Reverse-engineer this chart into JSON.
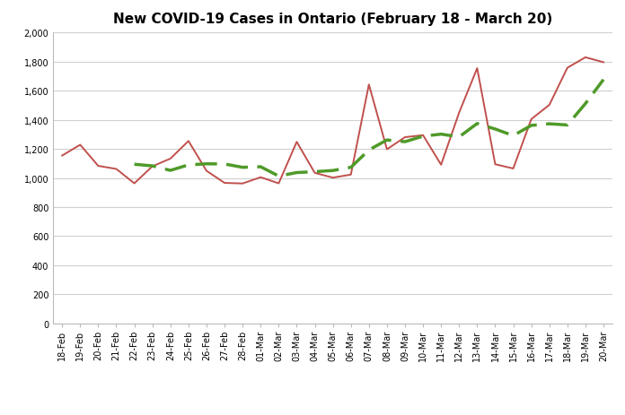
{
  "title": "New COVID-19 Cases in Ontario (February 18 - March 20)",
  "dates": [
    "18-Feb",
    "19-Feb",
    "20-Feb",
    "21-Feb",
    "22-Feb",
    "23-Feb",
    "24-Feb",
    "25-Feb",
    "26-Feb",
    "27-Feb",
    "28-Feb",
    "01-Mar",
    "02-Mar",
    "03-Mar",
    "04-Mar",
    "05-Mar",
    "06-Mar",
    "07-Mar",
    "08-Mar",
    "09-Mar",
    "10-Mar",
    "11-Mar",
    "12-Mar",
    "13-Mar",
    "14-Mar",
    "15-Mar",
    "16-Mar",
    "17-Mar",
    "18-Mar",
    "19-Mar",
    "20-Mar"
  ],
  "daily_cases": [
    1154,
    1228,
    1083,
    1062,
    963,
    1080,
    1133,
    1254,
    1049,
    966,
    962,
    1005,
    963,
    1248,
    1035,
    1002,
    1023,
    1642,
    1197,
    1280,
    1294,
    1091,
    1449,
    1754,
    1094,
    1065,
    1404,
    1502,
    1757,
    1829,
    1795
  ],
  "moving_avg": [
    null,
    null,
    null,
    null,
    1094,
    1083,
    1052,
    1090,
    1097,
    1096,
    1073,
    1077,
    1013,
    1037,
    1043,
    1051,
    1073,
    1192,
    1261,
    1249,
    1287,
    1301,
    1282,
    1374,
    1336,
    1291,
    1361,
    1372,
    1364,
    1511,
    1676
  ],
  "line_color": "#c0504d",
  "ma_color": "#4f9a29",
  "bg_color": "#ffffff",
  "plot_bg_color": "#ffffff",
  "grid_color": "#d0d0d0",
  "ylim": [
    0,
    2000
  ],
  "yticks": [
    0,
    200,
    400,
    600,
    800,
    1000,
    1200,
    1400,
    1600,
    1800,
    2000
  ],
  "title_fontsize": 11,
  "tick_fontsize": 7
}
